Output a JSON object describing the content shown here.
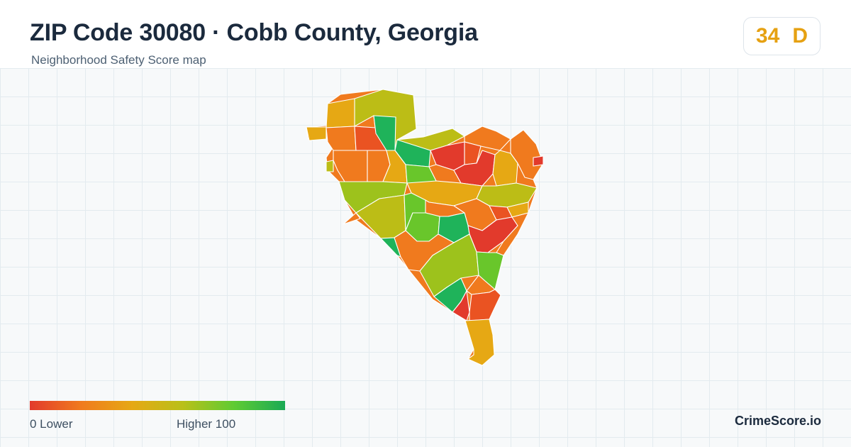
{
  "header": {
    "title": "ZIP Code 30080 · Cobb County, Georgia",
    "subtitle": "Neighborhood Safety Score map"
  },
  "score": {
    "value": "34",
    "grade": "D",
    "color": "#e6a112"
  },
  "legend": {
    "min_label": "0  Lower",
    "max_label": "Higher  100",
    "gradient_colors": [
      "#e23a2c",
      "#f07a1e",
      "#e6a814",
      "#b9c019",
      "#5fcb33",
      "#1aaa55"
    ]
  },
  "map": {
    "description": "choropleth of neighborhood safety scores",
    "colors": {
      "red": "#e23a2c",
      "red_orange": "#ea5322",
      "orange": "#f07a1e",
      "amber": "#e6a814",
      "olive": "#bcbd16",
      "yellow_green": "#9dc21c",
      "green": "#69c62b",
      "emerald": "#1fb35a"
    }
  },
  "brand": {
    "name": "CrimeScore.io"
  }
}
